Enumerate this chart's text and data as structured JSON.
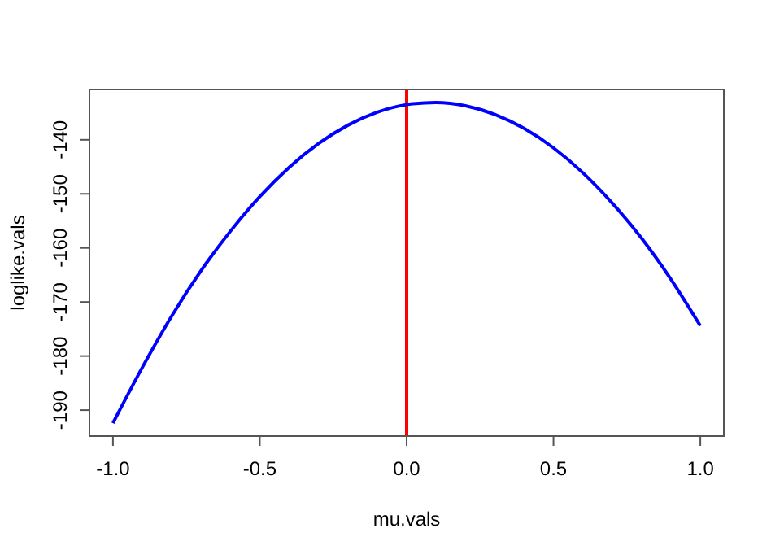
{
  "chart_data": {
    "type": "line",
    "xlabel": "mu.vals",
    "ylabel": "loglike.vals",
    "x": [
      -1,
      -0.9,
      -0.8,
      -0.7,
      -0.6,
      -0.5,
      -0.4,
      -0.3,
      -0.2,
      -0.1,
      0,
      0.1,
      0.2,
      0.3,
      0.4,
      0.5,
      0.6,
      0.7,
      0.8,
      0.9,
      1
    ],
    "series": [
      {
        "color": "#0000ff",
        "values": [
          -192.4,
          -182.1,
          -172.6,
          -164.2,
          -156.9,
          -150.5,
          -145.1,
          -140.7,
          -137.3,
          -134.9,
          -133.5,
          -133.1,
          -133.7,
          -135.3,
          -137.9,
          -141.5,
          -146.1,
          -151.7,
          -158.2,
          -165.8,
          -174.4
        ]
      }
    ],
    "xlim": [
      -1.08,
      1.08
    ],
    "ylim": [
      -194.8,
      -130.7
    ],
    "xticks": [
      {
        "value": -1,
        "label": "-1.0"
      },
      {
        "value": -0.5,
        "label": "-0.5"
      },
      {
        "value": 0,
        "label": "0.0"
      },
      {
        "value": 0.5,
        "label": "0.5"
      },
      {
        "value": 1,
        "label": "1.0"
      }
    ],
    "yticks": [
      -190,
      -180,
      -170,
      -160,
      -150,
      -140
    ],
    "ref_lines": [
      {
        "axis": "x",
        "value": 0,
        "color": "#ff0000"
      }
    ],
    "grid": false,
    "marker": "none",
    "line_style": "solid"
  }
}
